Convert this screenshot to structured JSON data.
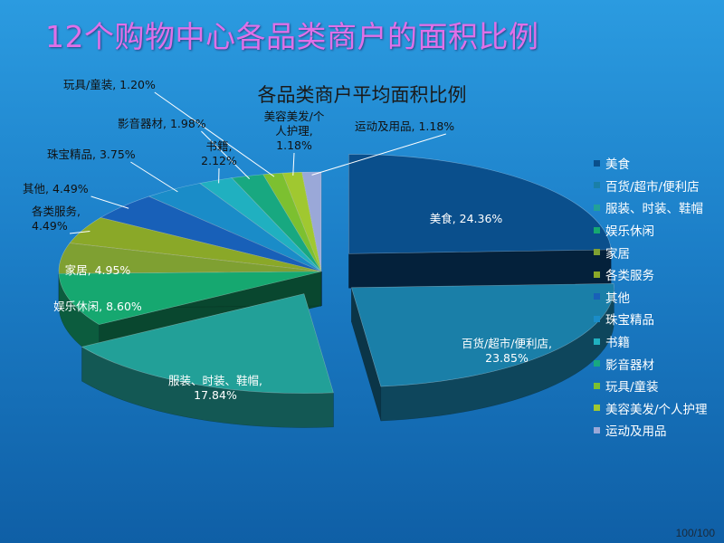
{
  "slide": {
    "title": "12个购物中心各品类商户的面积比例",
    "page_number": "100/100"
  },
  "chart_data": {
    "type": "pie",
    "style": "3d-exploded",
    "title": "各品类商户平均面积比例",
    "legend_position": "right",
    "categories": [
      "美食",
      "百货/超市/便利店",
      "服装、时装、鞋帽",
      "娱乐休闲",
      "家居",
      "各类服务",
      "其他",
      "珠宝精品",
      "书籍",
      "影音器材",
      "玩具/童装",
      "美容美发/个人护理",
      "运动及用品"
    ],
    "values": [
      24.36,
      23.85,
      17.84,
      8.6,
      4.95,
      4.49,
      4.49,
      3.75,
      2.12,
      1.98,
      1.2,
      1.18,
      1.18
    ],
    "data_labels": [
      [
        "美食, 24.36%"
      ],
      [
        "百货/超市/便利店,",
        "23.85%"
      ],
      [
        "服装、时装、鞋帽,",
        "17.84%"
      ],
      [
        "娱乐休闲, 8.60%"
      ],
      [
        "家居, 4.95%"
      ],
      [
        "各类服务,",
        "4.49%"
      ],
      [
        "其他, 4.49%"
      ],
      [
        "珠宝精品, 3.75%"
      ],
      [
        "书籍,",
        "2.12%"
      ],
      [
        "影音器材, 1.98%"
      ],
      [
        "玩具/童装, 1.20%"
      ],
      [
        "美容美发/个",
        "人护理,",
        "1.18%"
      ],
      [
        "运动及用品, 1.18%"
      ]
    ],
    "colors": [
      "#0a4f8c",
      "#1a7fa8",
      "#22a098",
      "#16a870",
      "#7fa032",
      "#8aa828",
      "#1860b8",
      "#1a8cc8",
      "#20b0c0",
      "#18a880",
      "#7cc030",
      "#a0c830",
      "#9aa8d8"
    ],
    "unit": "%"
  }
}
